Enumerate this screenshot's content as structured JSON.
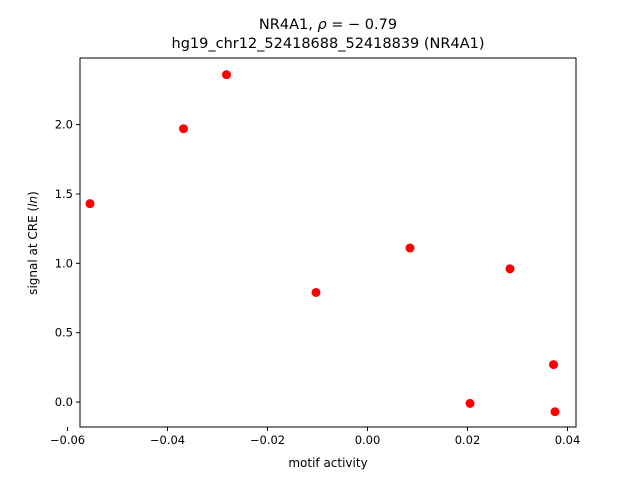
{
  "chart_data": {
    "type": "scatter",
    "title_gene": "NR4A1, ",
    "title_rho_symbol": "ρ",
    "title_rho_value": " = − 0.79",
    "subtitle": "hg19_chr12_52418688_52418839 (NR4A1)",
    "xlabel": "motif activity",
    "ylabel_prefix": "signal at CRE (",
    "ylabel_italic": "ln",
    "ylabel_suffix": ")",
    "xlim": [
      -0.0575,
      0.0417
    ],
    "ylim": [
      -0.18,
      2.48
    ],
    "xticks": [
      -0.06,
      -0.04,
      -0.02,
      0.0,
      0.02,
      0.04
    ],
    "xtick_labels": [
      "−0.06",
      "−0.04",
      "−0.02",
      "0.00",
      "0.02",
      "0.04"
    ],
    "yticks": [
      0.0,
      0.5,
      1.0,
      1.5,
      2.0
    ],
    "ytick_labels": [
      "0.0",
      "0.5",
      "1.0",
      "1.5",
      "2.0"
    ],
    "marker_color": "#ff0000",
    "points": [
      {
        "x": -0.0555,
        "y": 1.43
      },
      {
        "x": -0.0368,
        "y": 1.97
      },
      {
        "x": -0.0282,
        "y": 2.36
      },
      {
        "x": -0.0103,
        "y": 0.79
      },
      {
        "x": 0.0085,
        "y": 1.11
      },
      {
        "x": 0.0205,
        "y": -0.01
      },
      {
        "x": 0.0285,
        "y": 0.96
      },
      {
        "x": 0.0372,
        "y": 0.27
      },
      {
        "x": 0.0375,
        "y": -0.07
      }
    ]
  }
}
